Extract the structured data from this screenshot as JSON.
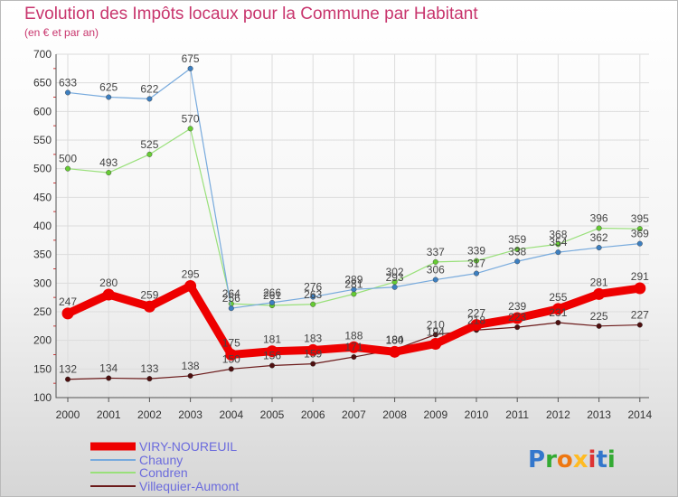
{
  "chart_data": {
    "type": "line",
    "title": "Evolution des Impôts locaux pour la Commune par Habitant",
    "subtitle": "(en € et par an)",
    "xlabel": "",
    "ylabel": "",
    "ylim": [
      100,
      700
    ],
    "yticks": [
      100,
      150,
      200,
      250,
      300,
      350,
      400,
      450,
      500,
      550,
      600,
      650,
      700
    ],
    "grid": true,
    "legend_position": "bottom-left",
    "categories": [
      "2000",
      "2001",
      "2002",
      "2003",
      "2004",
      "2005",
      "2006",
      "2007",
      "2008",
      "2009",
      "2010",
      "2011",
      "2012",
      "2013",
      "2014"
    ],
    "series": [
      {
        "name": "Villequier-Aumont",
        "color": "#6b1a1a",
        "marker": "#4d0f0f",
        "width": 1.2,
        "values": [
          132,
          134,
          133,
          138,
          150,
          156,
          159,
          171,
          184,
          210,
          218,
          223,
          231,
          225,
          227
        ]
      },
      {
        "name": "Condren",
        "color": "#99e07a",
        "marker": "#66cc33",
        "width": 1.2,
        "values": [
          500,
          493,
          525,
          570,
          264,
          261,
          263,
          281,
          302,
          337,
          339,
          359,
          368,
          396,
          395
        ]
      },
      {
        "name": "Chauny",
        "color": "#77aadd",
        "marker": "#3d7fc0",
        "width": 1.2,
        "values": [
          633,
          625,
          622,
          675,
          256,
          266,
          276,
          289,
          293,
          306,
          317,
          338,
          354,
          362,
          369
        ]
      },
      {
        "name": "VIRY-NOUREUIL",
        "color": "#ee0000",
        "marker": "#ee0000",
        "width": 9,
        "values": [
          247,
          280,
          259,
          295,
          175,
          181,
          183,
          188,
          180,
          194,
          227,
          239,
          255,
          281,
          291
        ]
      }
    ],
    "legend_order": [
      "VIRY-NOUREUIL",
      "Chauny",
      "Condren",
      "Villequier-Aumont"
    ]
  },
  "branding": {
    "logo_text": "Proxiti",
    "letter_colors": [
      "#3377cc",
      "#33aa33",
      "#ee7711",
      "#ffbb22",
      "#dd3333",
      "#3377cc",
      "#33aa33"
    ]
  },
  "colors": {
    "title": "#c8356d",
    "legend_text": "#6b6bdd",
    "grid": "#dcdcdc",
    "axis": "#555555",
    "minor_tick": "#cc3333"
  }
}
